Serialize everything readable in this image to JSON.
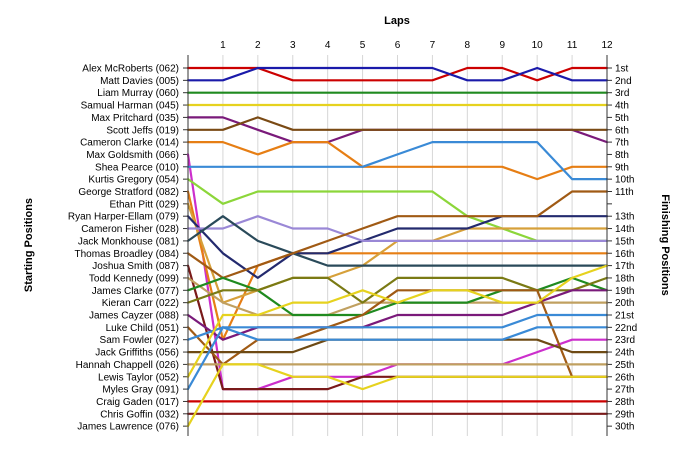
{
  "chart_data": {
    "type": "line",
    "title": "Laps",
    "xlabel": "Laps",
    "ylabel_left": "Starting Positions",
    "ylabel_right": "Finishing Positions",
    "laps": [
      1,
      2,
      3,
      4,
      5,
      6,
      7,
      8,
      9,
      10,
      11,
      12
    ],
    "lap_labels": [
      "1",
      "2",
      "3",
      "4",
      "5",
      "6",
      "7",
      "8",
      "9",
      "10",
      "11",
      "12"
    ],
    "finish_labels": [
      "1st",
      "2nd",
      "3rd",
      "4th",
      "5th",
      "6th",
      "7th",
      "8th",
      "9th",
      "10th",
      "11th",
      "13th",
      "14th",
      "15th",
      "16th",
      "17th",
      "18th",
      "19th",
      "20th",
      "21st",
      "22nd",
      "23rd",
      "24th",
      "25th",
      "26th",
      "27th",
      "28th",
      "29th",
      "30th"
    ],
    "finish_positions": [
      1,
      2,
      3,
      4,
      5,
      6,
      7,
      8,
      9,
      10,
      11,
      13,
      14,
      15,
      16,
      17,
      18,
      19,
      20,
      21,
      22,
      23,
      24,
      25,
      26,
      27,
      28,
      29,
      30
    ],
    "grid_lines": true,
    "series": [
      {
        "name": "Alex McRoberts (062)",
        "color": "#cc0000",
        "values": [
          1,
          1,
          1,
          2,
          2,
          2,
          2,
          2,
          1,
          1,
          2,
          1,
          1
        ]
      },
      {
        "name": "Matt Davies (005)",
        "color": "#1a1aaa",
        "values": [
          2,
          2,
          1,
          1,
          1,
          1,
          1,
          1,
          2,
          2,
          1,
          2,
          2
        ]
      },
      {
        "name": "Liam Murray (060)",
        "color": "#1f8a1f",
        "values": [
          3,
          3,
          3,
          3,
          3,
          3,
          3,
          3,
          3,
          3,
          3,
          3,
          3
        ]
      },
      {
        "name": "Samual Harman (045)",
        "color": "#e6d21e",
        "values": [
          4,
          4,
          4,
          4,
          4,
          4,
          4,
          4,
          4,
          4,
          4,
          4,
          4
        ]
      },
      {
        "name": "Max Pritchard (035)",
        "color": "#7a1a7a",
        "values": [
          5,
          5,
          6,
          7,
          7,
          6,
          6,
          6,
          6,
          6,
          6,
          6,
          7
        ]
      },
      {
        "name": "Scott Jeffs (019)",
        "color": "#7a4a14",
        "values": [
          6,
          6,
          5,
          6,
          6,
          6,
          6,
          6,
          6,
          6,
          6,
          6,
          6
        ]
      },
      {
        "name": "Cameron Clarke (014)",
        "color": "#e67e14",
        "values": [
          7,
          7,
          8,
          7,
          7,
          9,
          9,
          9,
          9,
          9,
          10,
          9,
          9
        ]
      },
      {
        "name": "Max Goldsmith (066)",
        "color": "#cc2fcc",
        "values": [
          8,
          27,
          27,
          26,
          26,
          26,
          25,
          25,
          25,
          25,
          24,
          23,
          23
        ]
      },
      {
        "name": "Shea Pearce (010)",
        "color": "#3a8ad6",
        "values": [
          9,
          9,
          9,
          9,
          9,
          9,
          8,
          7,
          7,
          7,
          7,
          10,
          10
        ]
      },
      {
        "name": "Kurtis Gregory (054)",
        "color": "#8cd63a",
        "values": [
          10,
          12,
          11,
          11,
          11,
          11,
          11,
          11,
          13,
          14,
          15,
          15,
          15
        ]
      },
      {
        "name": "George Stratford (082)",
        "color": "#e67e14",
        "values": [
          11,
          23,
          17,
          16,
          16,
          16,
          16,
          16,
          16,
          16,
          16,
          16,
          16
        ]
      },
      {
        "name": "Ethan Pitt (029)",
        "color": "#d6a03a",
        "values": [
          12,
          20,
          19,
          18,
          18,
          17,
          15,
          15,
          14,
          14,
          14,
          14,
          14
        ]
      },
      {
        "name": "Ryan Harper-Ellam (079)",
        "color": "#232a6e",
        "values": [
          13,
          16,
          18,
          16,
          16,
          15,
          14,
          14,
          14,
          13,
          13,
          13,
          13
        ]
      },
      {
        "name": "Cameron Fisher (028)",
        "color": "#9a88d6",
        "values": [
          14,
          14,
          13,
          14,
          14,
          15,
          15,
          15,
          15,
          15,
          15,
          15,
          15
        ]
      },
      {
        "name": "Jack Monkhouse (081)",
        "color": "#2a4a5a",
        "values": [
          15,
          13,
          15,
          16,
          17,
          17,
          17,
          17,
          17,
          17,
          17,
          17,
          17
        ]
      },
      {
        "name": "Thomas Broadley (084)",
        "color": "#a05a14",
        "values": [
          16,
          18,
          17,
          16,
          15,
          14,
          13,
          13,
          13,
          13,
          13,
          11,
          11
        ]
      },
      {
        "name": "Joshua Smith (087)",
        "color": "#7a1a1a",
        "values": [
          17,
          27,
          27,
          27,
          27,
          26,
          26,
          26,
          26,
          26,
          26,
          26,
          26
        ]
      },
      {
        "name": "Todd Kennedy (099)",
        "color": "#c0a060",
        "values": [
          18,
          20,
          21,
          21,
          21,
          20,
          20,
          20,
          20,
          20,
          20,
          20,
          20
        ]
      },
      {
        "name": "James Clarke (077)",
        "color": "#1f8a1f",
        "values": [
          19,
          18,
          19,
          21,
          21,
          21,
          20,
          20,
          20,
          19,
          19,
          18,
          19
        ]
      },
      {
        "name": "Kieran Carr (022)",
        "color": "#7a7a14",
        "values": [
          20,
          19,
          19,
          18,
          18,
          20,
          18,
          18,
          18,
          18,
          19,
          19,
          18
        ]
      },
      {
        "name": "James Cayzer (088)",
        "color": "#7a1a7a",
        "values": [
          21,
          23,
          22,
          22,
          22,
          22,
          21,
          21,
          21,
          21,
          20,
          19,
          19
        ]
      },
      {
        "name": "Luke Child (051)",
        "color": "#a05a14",
        "values": [
          22,
          25,
          23,
          23,
          22,
          21,
          19,
          19,
          19,
          19,
          19,
          26,
          26
        ]
      },
      {
        "name": "Sam Fowler (027)",
        "color": "#3a8ad6",
        "values": [
          23,
          22,
          22,
          22,
          22,
          22,
          22,
          22,
          22,
          22,
          21,
          21,
          21
        ]
      },
      {
        "name": "Jack Griffiths (056)",
        "color": "#6e4a14",
        "values": [
          24,
          24,
          24,
          24,
          23,
          23,
          23,
          23,
          23,
          23,
          23,
          24,
          24
        ]
      },
      {
        "name": "Hannah Chappell (026)",
        "color": "#c0a060",
        "values": [
          25,
          25,
          25,
          25,
          25,
          25,
          25,
          25,
          25,
          25,
          25,
          25,
          25
        ]
      },
      {
        "name": "Lewis Taylor (052)",
        "color": "#e6d21e",
        "values": [
          26,
          21,
          21,
          20,
          20,
          19,
          20,
          19,
          19,
          20,
          20,
          18,
          17
        ]
      },
      {
        "name": "Myles Gray (091)",
        "color": "#3a8ad6",
        "values": [
          27,
          22,
          23,
          23,
          23,
          23,
          23,
          23,
          23,
          23,
          22,
          22,
          22
        ]
      },
      {
        "name": "Craig Gaden (017)",
        "color": "#cc0000",
        "values": [
          28,
          28,
          28,
          28,
          28,
          28,
          28,
          28,
          28,
          28,
          28,
          28,
          28
        ]
      },
      {
        "name": "Chris Goffin (032)",
        "color": "#7a1a1a",
        "values": [
          29,
          29,
          29,
          29,
          29,
          29,
          29,
          29,
          29,
          29,
          29,
          29,
          29
        ]
      },
      {
        "name": "James Lawrence (076)",
        "color": "#e6d21e",
        "values": [
          30,
          25,
          25,
          26,
          26,
          27,
          26,
          26,
          26,
          26,
          26,
          26,
          26
        ]
      }
    ]
  }
}
